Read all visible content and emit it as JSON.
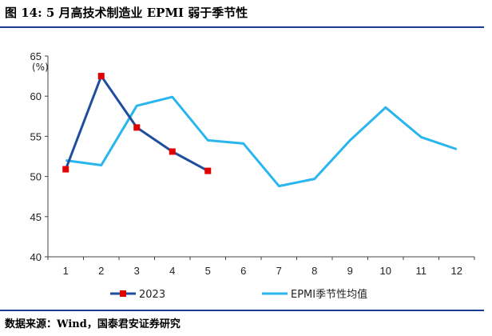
{
  "figure": {
    "title": "图 14:  5 月高技术制造业 EPMI 弱于季节性",
    "source": "数据来源：Wind，国泰君安证券研究"
  },
  "chart_data": {
    "type": "line",
    "x": [
      1,
      2,
      3,
      4,
      5,
      6,
      7,
      8,
      9,
      10,
      11,
      12
    ],
    "xlabel": "",
    "ylabel": "(%)",
    "ylim": [
      40,
      65
    ],
    "yticks": [
      40,
      45,
      50,
      55,
      60,
      65
    ],
    "grid": false,
    "legend": "bottom",
    "series": [
      {
        "name": "2023",
        "color": "#1f4e9c",
        "marker": "square",
        "marker_color": "#e00000",
        "x": [
          1,
          2,
          3,
          4,
          5
        ],
        "values": [
          50.9,
          62.5,
          56.1,
          53.1,
          50.7
        ]
      },
      {
        "name": "EPMI季节性均值",
        "color": "#29b6ef",
        "marker": "none",
        "x": [
          1,
          2,
          3,
          4,
          5,
          6,
          7,
          8,
          9,
          10,
          11,
          12
        ],
        "values": [
          52.0,
          51.4,
          58.8,
          59.9,
          54.5,
          54.1,
          48.8,
          49.7,
          54.5,
          58.6,
          54.9,
          53.4
        ]
      }
    ]
  }
}
